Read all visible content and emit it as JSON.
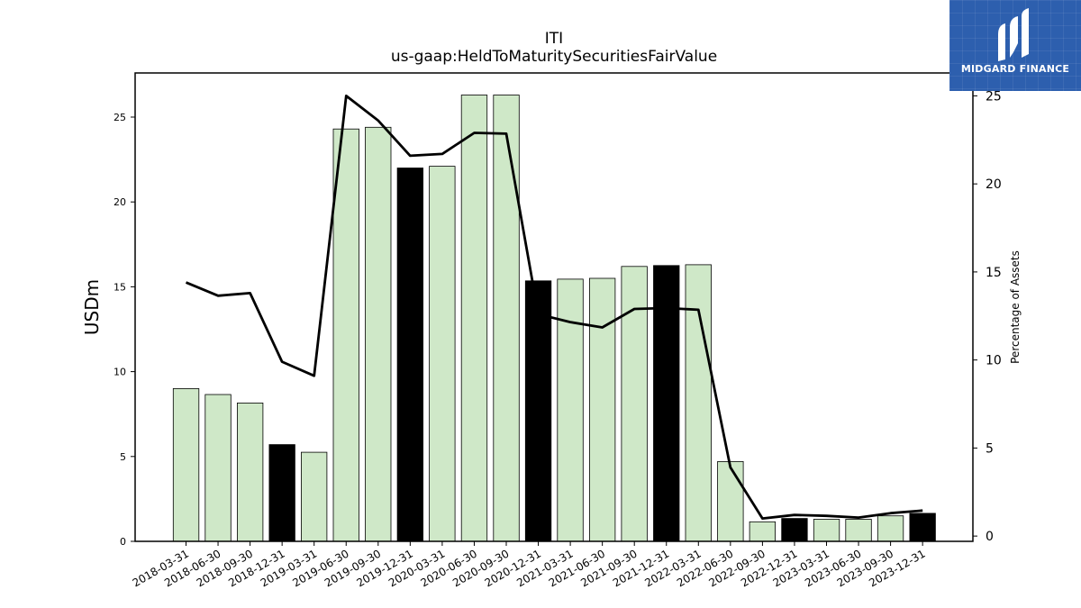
{
  "chart_data": {
    "type": "bar",
    "title": "ITI",
    "subtitle": "us-gaap:HeldToMaturitySecuritiesFairValue",
    "ylabel": "USDm",
    "y2label": "Percentage of Assets",
    "ylim": [
      0,
      27.6
    ],
    "y2lim": [
      -0.3,
      26.3
    ],
    "yticks": [
      0,
      5,
      10,
      15,
      20,
      25
    ],
    "y2ticks": [
      0,
      5,
      10,
      15,
      20,
      25
    ],
    "categories": [
      "2018-03-31",
      "2018-06-30",
      "2018-09-30",
      "2018-12-31",
      "2019-03-31",
      "2019-06-30",
      "2019-09-30",
      "2019-12-31",
      "2020-03-31",
      "2020-06-30",
      "2020-09-30",
      "2020-12-31",
      "2021-03-31",
      "2021-06-30",
      "2021-09-30",
      "2021-12-31",
      "2022-03-31",
      "2022-06-30",
      "2022-09-30",
      "2022-12-31",
      "2023-03-31",
      "2023-06-30",
      "2023-09-30",
      "2023-12-31"
    ],
    "series": [
      {
        "type": "bar",
        "axis": "left",
        "values": [
          9.0,
          8.65,
          8.15,
          5.7,
          5.25,
          24.3,
          24.4,
          22.0,
          22.1,
          26.3,
          26.3,
          15.35,
          15.45,
          15.5,
          16.2,
          16.25,
          16.3,
          4.7,
          1.15,
          1.35,
          1.3,
          1.3,
          1.5,
          1.65
        ],
        "highlight": [
          false,
          false,
          false,
          true,
          false,
          false,
          false,
          true,
          false,
          false,
          false,
          true,
          false,
          false,
          false,
          true,
          false,
          false,
          false,
          true,
          false,
          false,
          false,
          true
        ]
      },
      {
        "type": "line",
        "axis": "right",
        "values": [
          14.4,
          13.65,
          13.8,
          9.9,
          9.1,
          25.0,
          23.6,
          21.6,
          21.7,
          22.9,
          22.85,
          12.6,
          12.15,
          11.85,
          12.9,
          12.95,
          12.85,
          3.9,
          1.0,
          1.2,
          1.15,
          1.05,
          1.3,
          1.45
        ]
      }
    ],
    "grid": false,
    "colors": {
      "bar_fill": "#cfe8c8",
      "bar_highlight": "#000000",
      "bar_edge": "#000000",
      "line": "#000000"
    }
  },
  "logo": {
    "text": "MIDGARD FINANCE",
    "icon": "midgard-logo-icon",
    "background": "#2d5fae"
  }
}
